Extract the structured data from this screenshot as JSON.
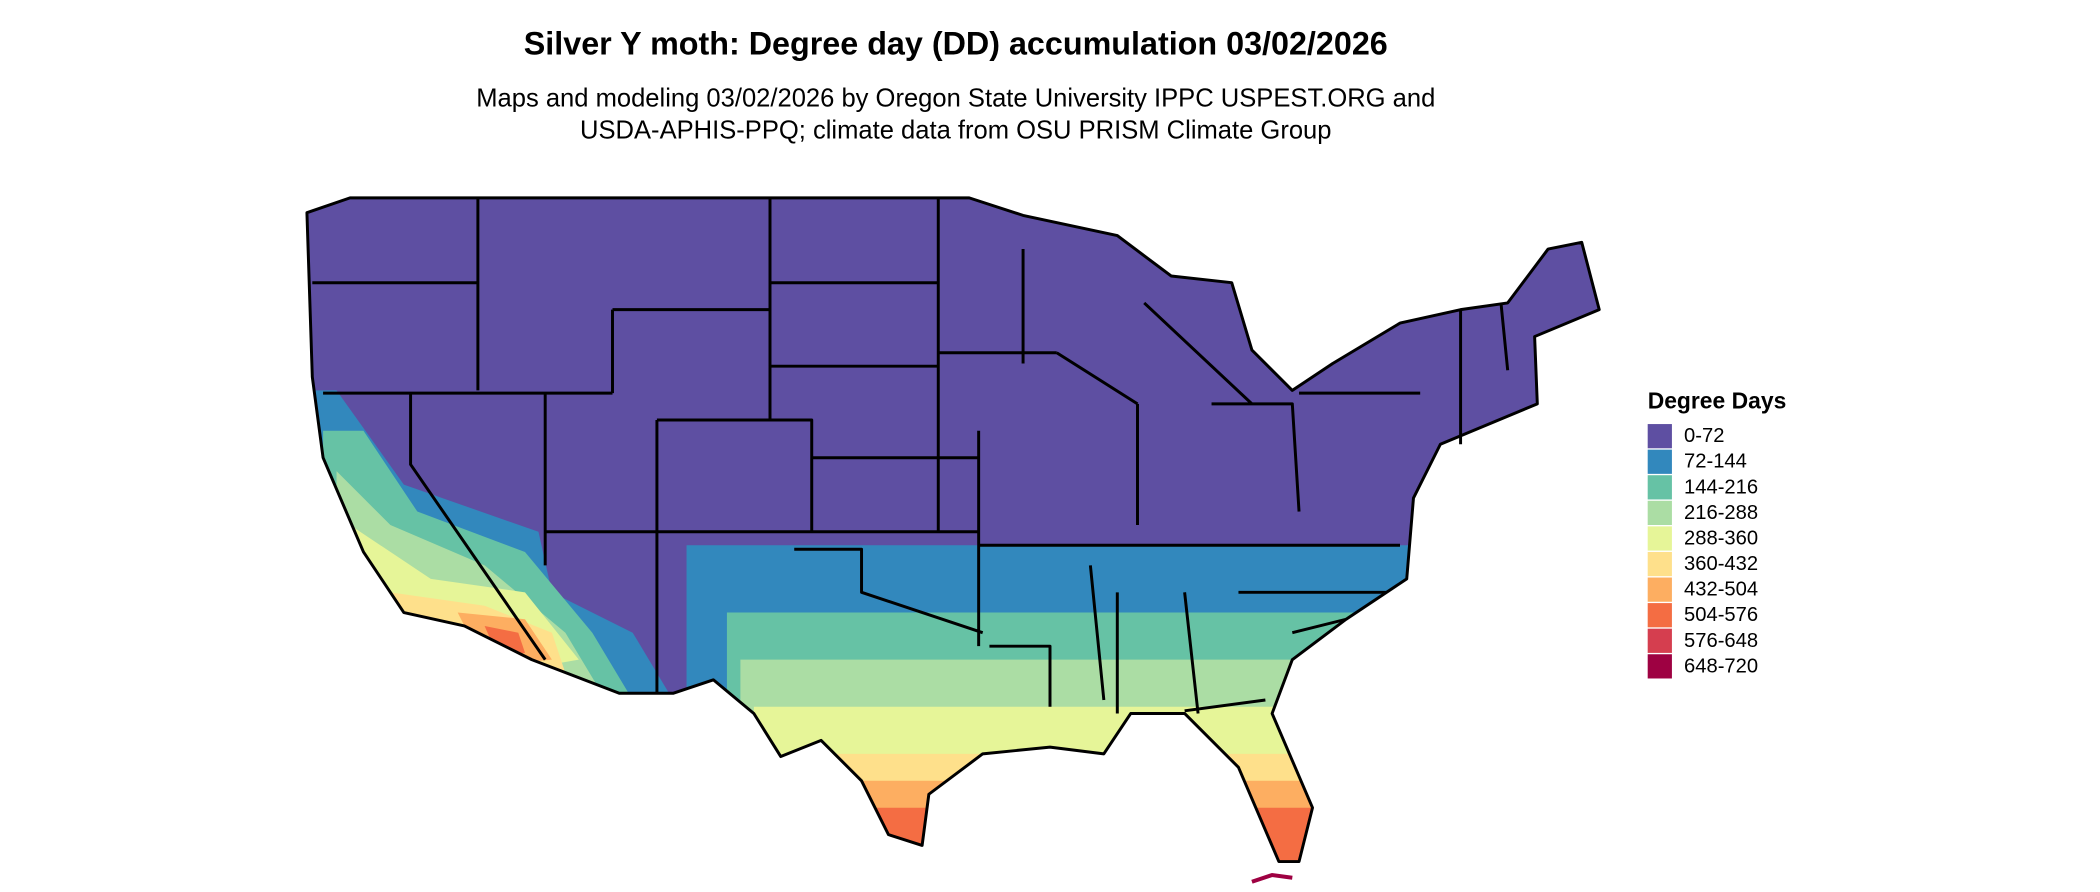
{
  "title": "Silver Y moth: Degree day (DD) accumulation 03/02/2026",
  "subtitle": [
    "Maps and modeling 03/02/2026 by Oregon State University IPPC USPEST.ORG and",
    "USDA-APHIS-PPQ; climate data from OSU PRISM Climate Group"
  ],
  "legend": {
    "title": "Degree Days",
    "items": [
      {
        "label": "0-72",
        "color": "#5e4fa2"
      },
      {
        "label": "72-144",
        "color": "#3288bd"
      },
      {
        "label": "144-216",
        "color": "#66c2a5"
      },
      {
        "label": "216-288",
        "color": "#abdda4"
      },
      {
        "label": "288-360",
        "color": "#e6f598"
      },
      {
        "label": "360-432",
        "color": "#fee08b"
      },
      {
        "label": "432-504",
        "color": "#fdae61"
      },
      {
        "label": "504-576",
        "color": "#f46d43"
      },
      {
        "label": "576-648",
        "color": "#d53e4f"
      },
      {
        "label": "648-720",
        "color": "#9e0142"
      }
    ]
  }
}
